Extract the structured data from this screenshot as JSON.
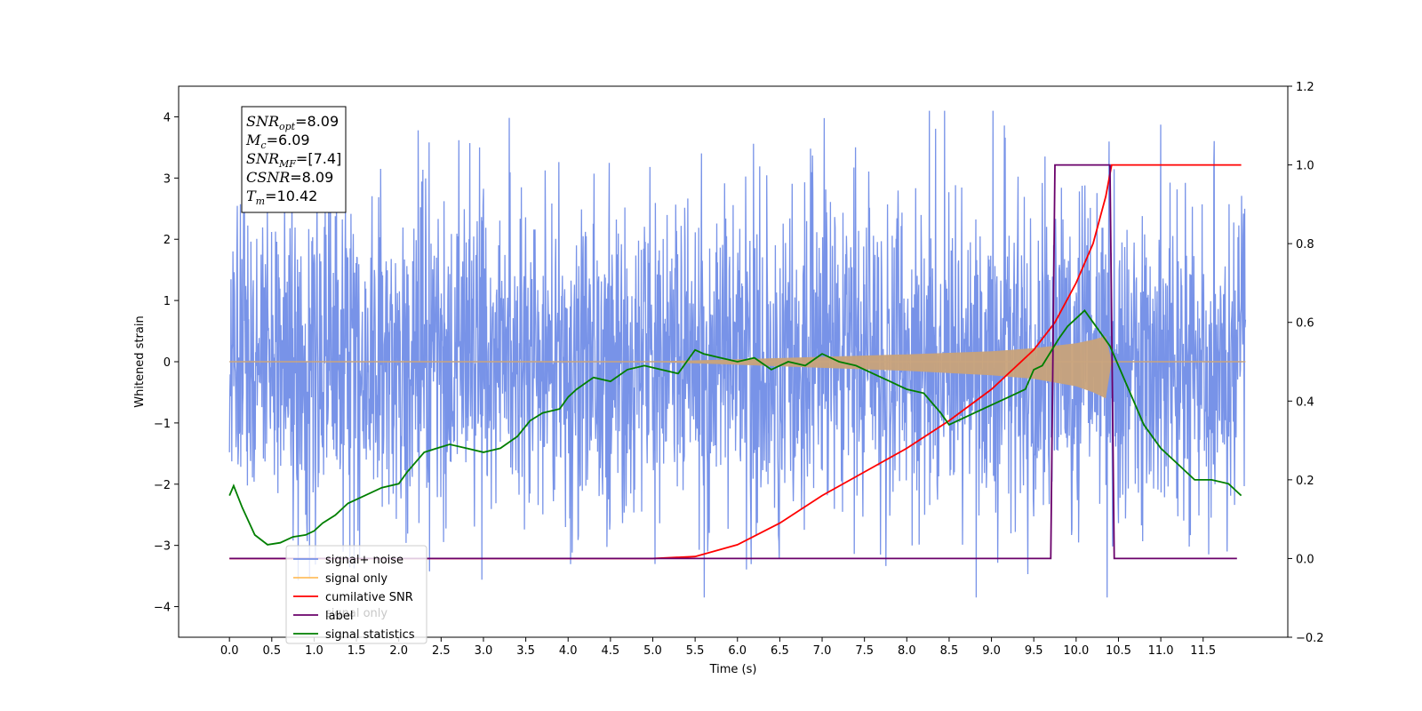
{
  "chart_data": {
    "type": "line",
    "xlabel": "Time (s)",
    "ylabel": "Whitened strain",
    "xlim": [
      -0.6,
      12.5
    ],
    "ylim": [
      -4.5,
      4.5
    ],
    "y2lim": [
      -0.2,
      1.2
    ],
    "x_ticks": [
      "0.0",
      "0.5",
      "1.0",
      "1.5",
      "2.0",
      "2.5",
      "3.0",
      "3.5",
      "4.0",
      "4.5",
      "5.0",
      "5.5",
      "6.0",
      "6.5",
      "7.0",
      "7.5",
      "8.0",
      "8.5",
      "9.0",
      "9.5",
      "10.0",
      "10.5",
      "11.0",
      "11.5"
    ],
    "y_ticks": [
      "4",
      "3",
      "2",
      "1",
      "0",
      "−1",
      "−2",
      "−3",
      "−4"
    ],
    "y2_ticks": [
      "1.2",
      "1.0",
      "0.8",
      "0.6",
      "0.4",
      "0.2",
      "0.0",
      "−0.2"
    ],
    "grid": false,
    "legend_position": "lower-left",
    "legend": [
      {
        "label": "signal+ noise",
        "color": "#7893e8"
      },
      {
        "label": "signal only",
        "color": "#ffbf60"
      },
      {
        "label": "cumilative SNR",
        "color": "#ff0000"
      },
      {
        "label": "label",
        "color": "#6a006a"
      },
      {
        "label": "signal statistics",
        "color": "#007f00"
      }
    ],
    "hidden_legend_text": "signal only",
    "annotation": [
      {
        "name": "SNR",
        "sub": "opt",
        "value": "=8.09"
      },
      {
        "name": "M",
        "sub": "c",
        "value": "=6.09"
      },
      {
        "name": "SNR",
        "sub": "MF",
        "value": "=[7.4]"
      },
      {
        "name": "CSNR",
        "sub": "",
        "value": "=8.09"
      },
      {
        "name": "T",
        "sub": "m",
        "value": "=10.42"
      }
    ],
    "series": [
      {
        "name": "signal+ noise",
        "axis": "left",
        "color": "#7893e8",
        "t_range": [
          0.0,
          12.0
        ],
        "typical_amplitude": 2.3,
        "peak_max": 4.1,
        "peak_min": -3.85
      },
      {
        "name": "signal only",
        "axis": "left",
        "color": "#c8a27a",
        "envelope": {
          "t": [
            0.0,
            5.0,
            6.0,
            7.0,
            8.0,
            9.0,
            9.5,
            10.0,
            10.2,
            10.35,
            10.42,
            10.5,
            12.0
          ],
          "upper": [
            0.0,
            0.005,
            0.04,
            0.08,
            0.12,
            0.17,
            0.22,
            0.3,
            0.36,
            0.42,
            0.0,
            0.0,
            0.0
          ],
          "lower": [
            0.0,
            -0.005,
            -0.05,
            -0.1,
            -0.15,
            -0.22,
            -0.28,
            -0.4,
            -0.5,
            -0.6,
            0.0,
            0.0,
            0.0
          ]
        }
      },
      {
        "name": "cumilative SNR",
        "axis": "right",
        "color": "#ff0000",
        "x": [
          0.0,
          5.0,
          5.5,
          6.0,
          6.5,
          7.0,
          7.5,
          8.0,
          8.5,
          9.0,
          9.5,
          9.75,
          10.0,
          10.2,
          10.35,
          10.42,
          11.95
        ],
        "y": [
          0.0,
          0.0,
          0.005,
          0.035,
          0.09,
          0.16,
          0.22,
          0.28,
          0.35,
          0.43,
          0.53,
          0.6,
          0.7,
          0.8,
          0.92,
          1.0,
          1.0
        ]
      },
      {
        "name": "label",
        "axis": "right",
        "color": "#6a006a",
        "x": [
          0.0,
          9.7,
          9.75,
          10.4,
          10.45,
          11.9
        ],
        "y": [
          0.0,
          0.0,
          1.0,
          1.0,
          0.0,
          0.0
        ]
      },
      {
        "name": "signal statistics",
        "axis": "right",
        "color": "#007f00",
        "x": [
          0.0,
          0.05,
          0.15,
          0.3,
          0.45,
          0.6,
          0.75,
          0.9,
          1.0,
          1.1,
          1.25,
          1.4,
          1.6,
          1.8,
          2.0,
          2.1,
          2.3,
          2.45,
          2.6,
          2.8,
          3.0,
          3.2,
          3.4,
          3.55,
          3.7,
          3.9,
          4.0,
          4.1,
          4.3,
          4.5,
          4.7,
          4.9,
          5.1,
          5.3,
          5.5,
          5.6,
          5.8,
          6.0,
          6.2,
          6.4,
          6.6,
          6.8,
          7.0,
          7.2,
          7.4,
          7.6,
          7.8,
          8.0,
          8.2,
          8.4,
          8.5,
          8.6,
          8.8,
          9.0,
          9.2,
          9.4,
          9.5,
          9.6,
          9.8,
          9.9,
          10.0,
          10.1,
          10.2,
          10.4,
          10.6,
          10.8,
          11.0,
          11.2,
          11.4,
          11.6,
          11.8,
          11.95
        ],
        "y": [
          0.16,
          0.185,
          0.13,
          0.06,
          0.035,
          0.04,
          0.055,
          0.06,
          0.07,
          0.09,
          0.11,
          0.14,
          0.16,
          0.18,
          0.19,
          0.22,
          0.27,
          0.28,
          0.29,
          0.28,
          0.27,
          0.28,
          0.31,
          0.35,
          0.37,
          0.38,
          0.41,
          0.43,
          0.46,
          0.45,
          0.48,
          0.49,
          0.48,
          0.47,
          0.53,
          0.52,
          0.51,
          0.5,
          0.51,
          0.48,
          0.5,
          0.49,
          0.52,
          0.5,
          0.49,
          0.47,
          0.45,
          0.43,
          0.42,
          0.37,
          0.34,
          0.35,
          0.37,
          0.39,
          0.41,
          0.43,
          0.48,
          0.49,
          0.56,
          0.59,
          0.61,
          0.63,
          0.6,
          0.54,
          0.44,
          0.34,
          0.28,
          0.24,
          0.2,
          0.2,
          0.19,
          0.16
        ]
      }
    ]
  }
}
